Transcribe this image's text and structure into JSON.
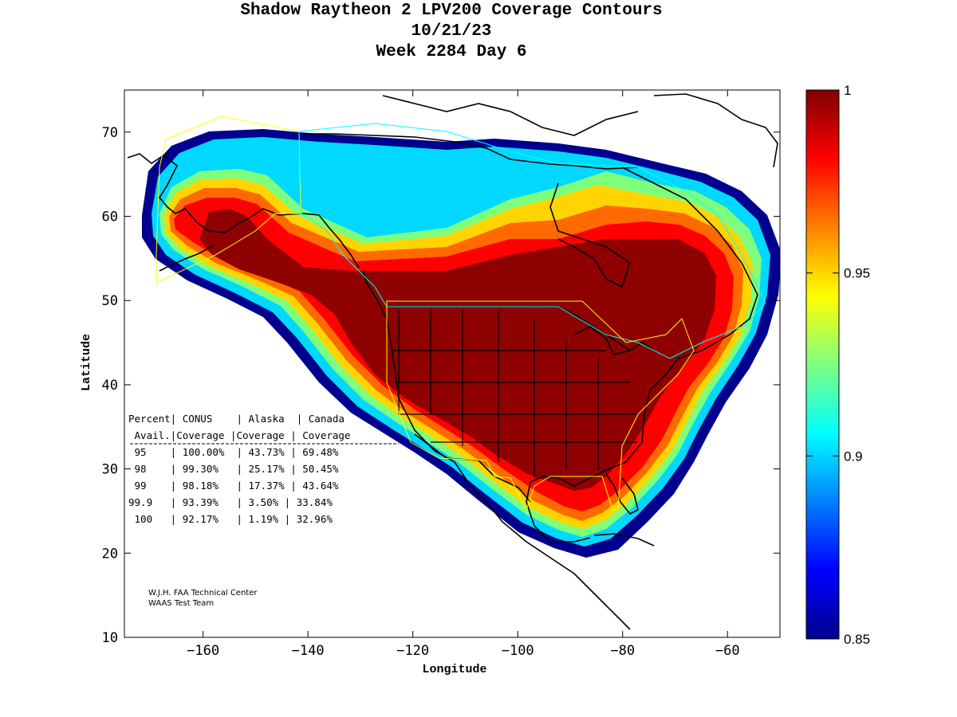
{
  "title": {
    "line1": "Shadow Raytheon 2 LPV200 Coverage Contours",
    "line2": "10/21/23",
    "line3": "Week 2284 Day 6"
  },
  "chart_data": {
    "type": "heatmap",
    "title": "Shadow Raytheon 2 LPV200 Coverage Contours",
    "xlabel": "Longitude",
    "ylabel": "Latitude",
    "xlim": [
      -175,
      -50
    ],
    "ylim": [
      10,
      75
    ],
    "x_ticks": [
      -160,
      -140,
      -120,
      -100,
      -80,
      -60
    ],
    "y_ticks": [
      10,
      20,
      30,
      40,
      50,
      60,
      70
    ],
    "colorbar": {
      "min": 0.85,
      "max": 1,
      "ticks": [
        0.85,
        0.9,
        0.95,
        1
      ],
      "colormap": [
        "#00008f",
        "#0000ff",
        "#0080ff",
        "#00ffff",
        "#80ff80",
        "#ffff00",
        "#ff8000",
        "#ff0000",
        "#800000"
      ]
    },
    "table": {
      "headers": [
        "Percent| CONUS    | Alaska  | Canada",
        " Avail.|Coverage |Coverage | Coverage"
      ],
      "rows": [
        {
          "percent": "95",
          "conus": "100.00%",
          "alaska": "43.73%",
          "canada": "69.48%"
        },
        {
          "percent": "98",
          "conus": "99.30%",
          "alaska": "25.17%",
          "canada": "50.45%"
        },
        {
          "percent": "99",
          "conus": "98.18%",
          "alaska": "17.37%",
          "canada": "43.64%"
        },
        {
          "percent": "99.9",
          "conus": "93.39%",
          "alaska": "3.50%",
          "canada": "33.84%"
        },
        {
          "percent": "100",
          "conus": "92.17%",
          "alaska": "1.19%",
          "canada": "32.96%"
        }
      ]
    },
    "credit": {
      "line1": "W.J.H. FAA Technical Center",
      "line2": "WAAS Test Team"
    }
  }
}
